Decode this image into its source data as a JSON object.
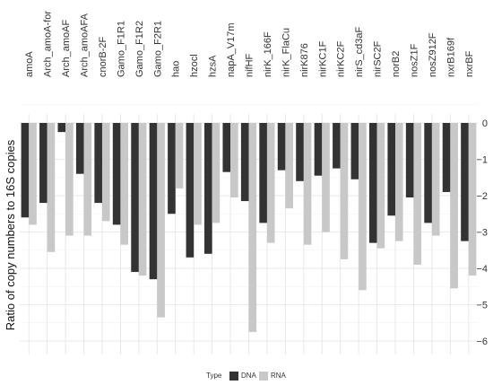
{
  "chart_data": {
    "type": "bar",
    "title": "",
    "xlabel": "",
    "ylabel": "Ratio of copy numbers to 16S copies",
    "ylim": [
      -6.1,
      0.25
    ],
    "yticks": [
      0,
      -1,
      -2,
      -3,
      -4,
      -5,
      -6
    ],
    "x_axis_position": "top",
    "grid": true,
    "legend_position": "bottom",
    "legend_title": "Type",
    "categories": [
      "amoA",
      "Arch_amoA-for",
      "Arch_amoAF",
      "Arch_amoAFA",
      "cnorB-2F",
      "Gamo_F1R1",
      "Gamo_F1R2",
      "Gamo_F2R1",
      "hao",
      "hzocl",
      "hzsA",
      "napA_V17m",
      "nifHF",
      "nirK_166F",
      "nirK_FlaCu",
      "nirK876",
      "nirKC1F",
      "nirKC2F",
      "nirS_cd3aF",
      "nirSC2F",
      "norB2",
      "nosZ1F",
      "nosZ912F",
      "nxrB169f",
      "nxrBF"
    ],
    "series": [
      {
        "name": "DNA",
        "color": "#333333",
        "values": [
          -2.6,
          -2.2,
          -0.25,
          -1.4,
          -2.2,
          -2.8,
          -4.1,
          -4.3,
          -2.5,
          -3.7,
          -3.6,
          -1.35,
          -2.15,
          -2.75,
          -1.3,
          -1.6,
          -1.45,
          -1.25,
          -1.55,
          -3.3,
          -2.55,
          -2.05,
          -2.75,
          -1.9,
          -3.25
        ]
      },
      {
        "name": "RNA",
        "color": "#c8c8c8",
        "values": [
          -2.8,
          -3.55,
          -3.1,
          -3.1,
          -2.7,
          -3.35,
          -4.2,
          -5.35,
          -1.8,
          -2.8,
          -2.75,
          -2.05,
          -5.75,
          -3.3,
          -2.35,
          -3.35,
          -3.0,
          -3.75,
          -4.6,
          -3.45,
          -3.25,
          -3.9,
          -3.1,
          -4.55,
          -4.2
        ]
      }
    ]
  }
}
